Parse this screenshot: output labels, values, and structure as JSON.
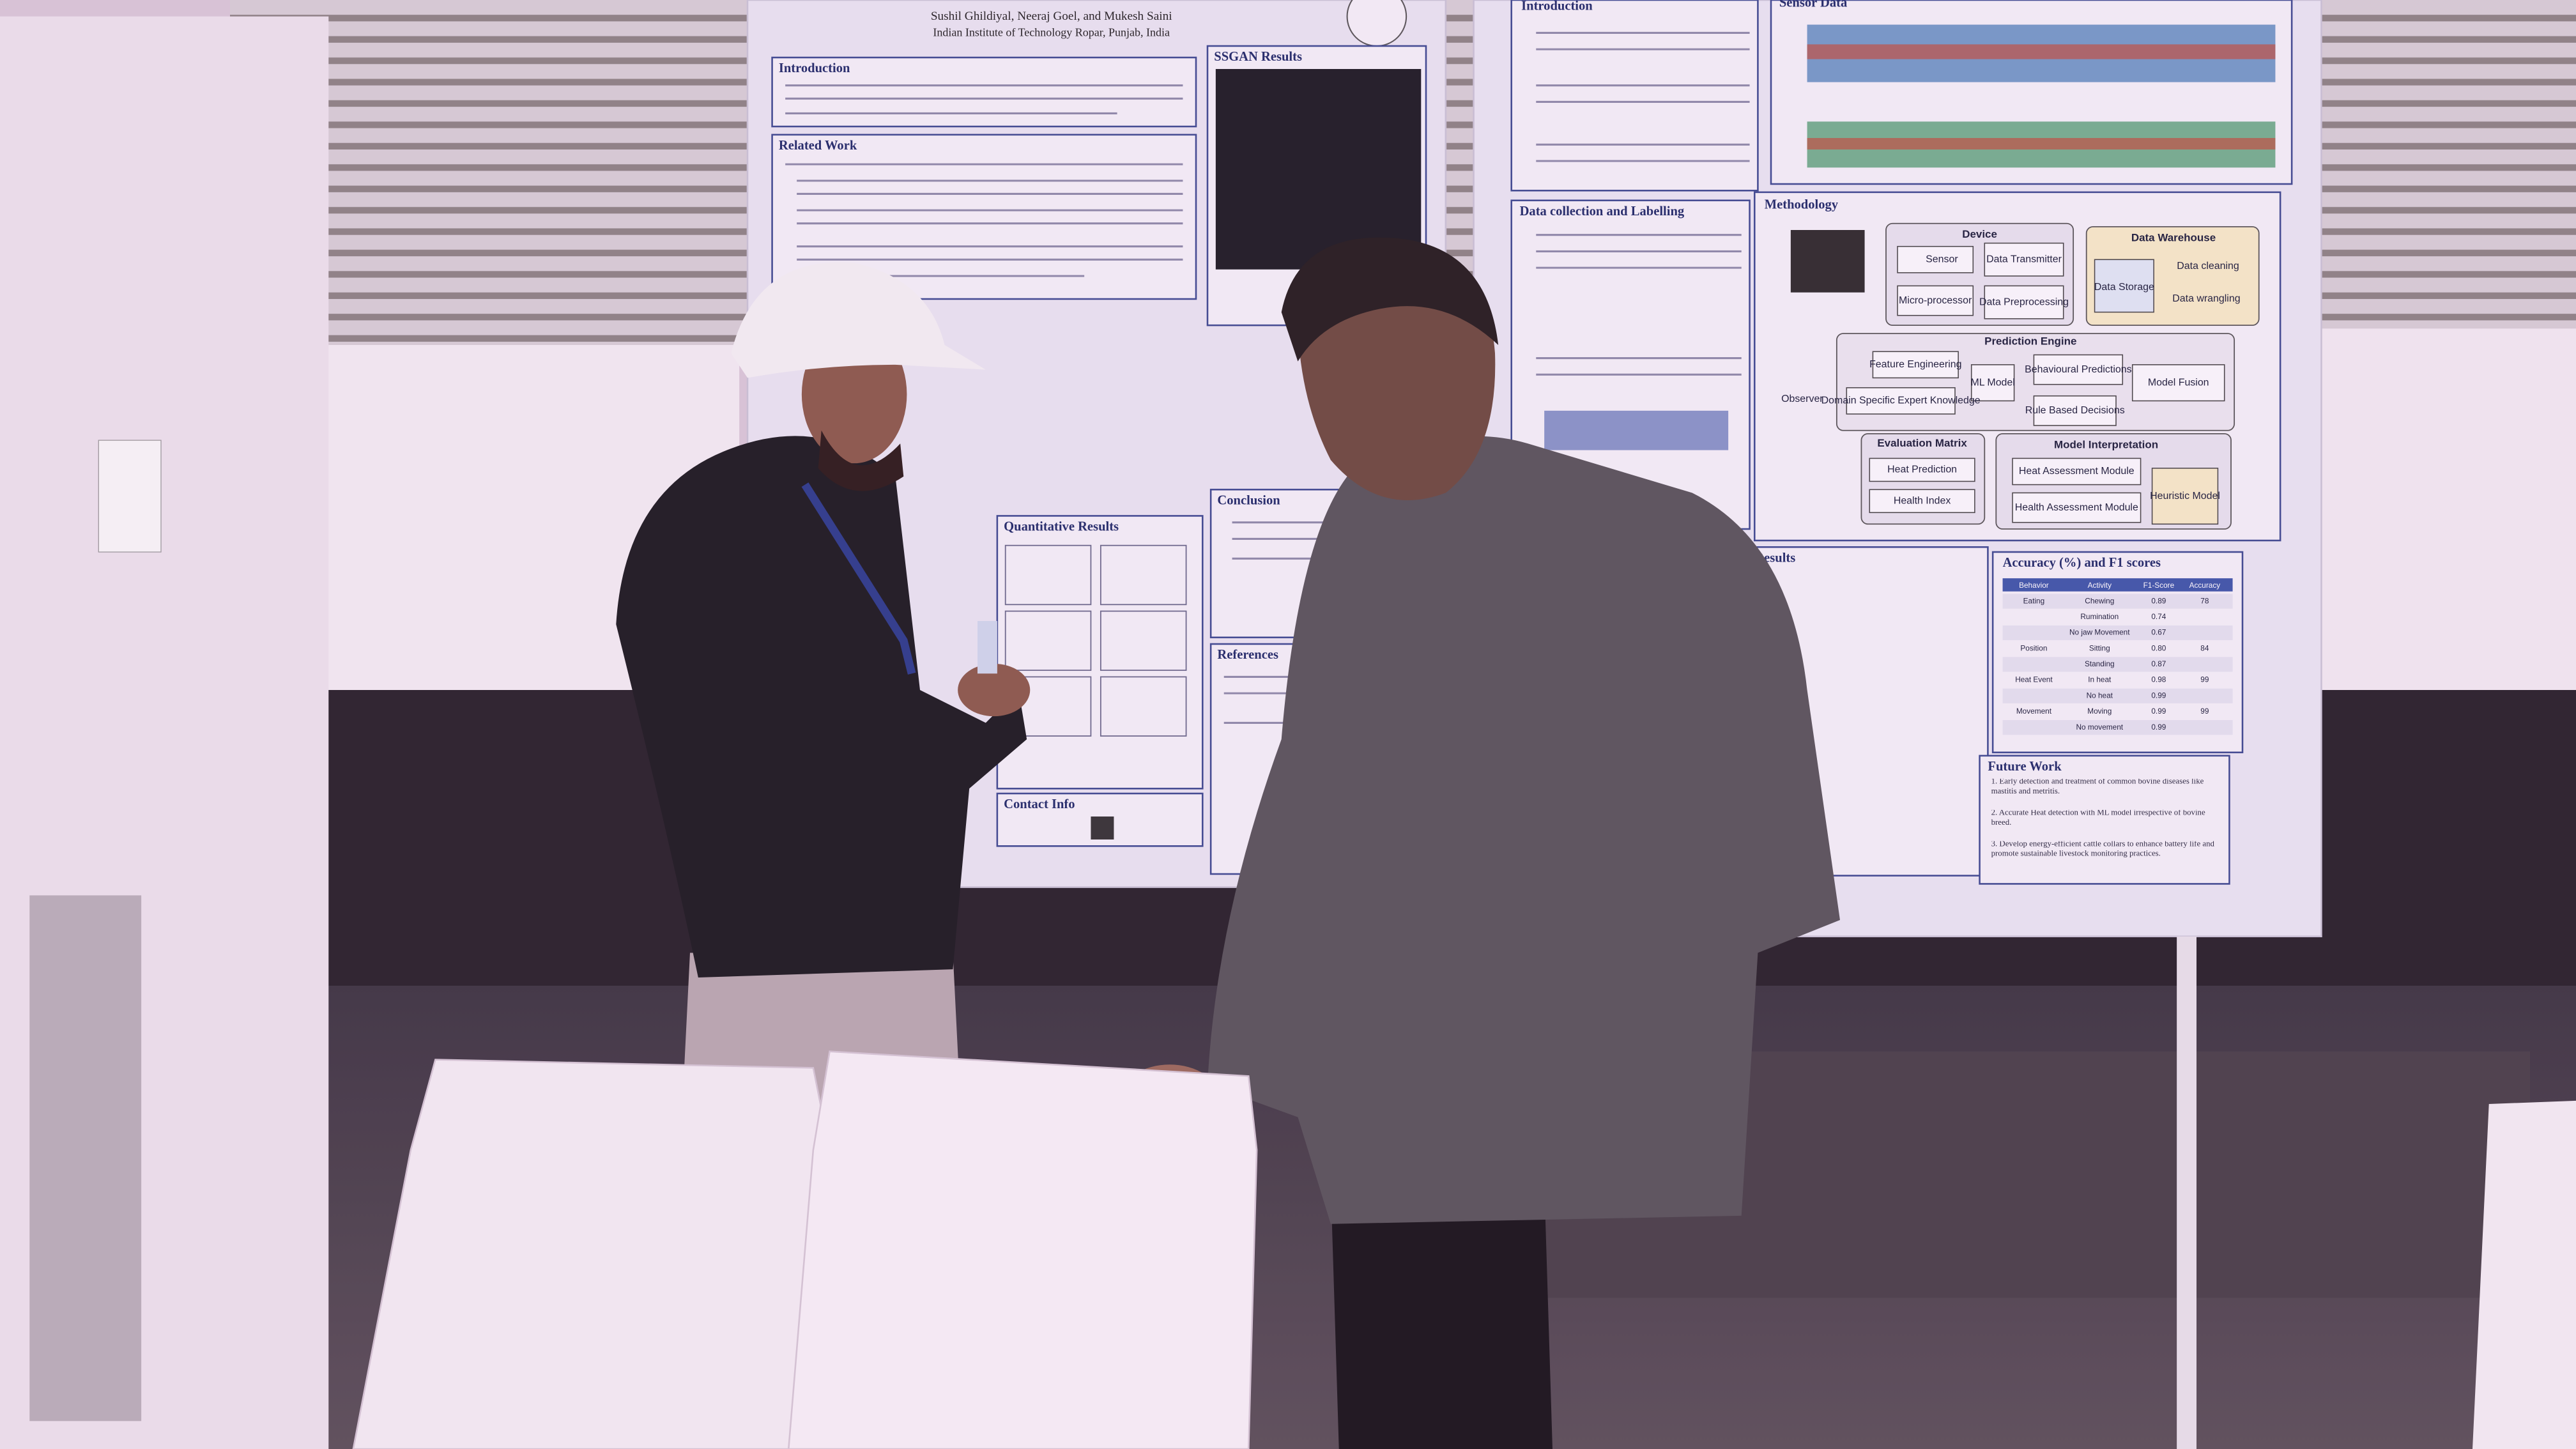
{
  "left_poster": {
    "authors": "Sushil Ghildiyal, Neeraj Goel, and Mukesh Saini",
    "affiliation": "Indian Institute of Technology Ropar, Punjab, India",
    "sections": {
      "introduction": "Introduction",
      "related_work": "Related Work",
      "ssgan_results": "SSGAN Results",
      "quantitative_results": "Quantitative Results",
      "conclusion": "Conclusion",
      "references": "References",
      "contact_info": "Contact Info"
    }
  },
  "right_poster": {
    "sections": {
      "introduction": "Introduction",
      "sensor_data": "Sensor Data",
      "data_collection": "Data collection and Labelling",
      "methodology": "Methodology",
      "results": "Results",
      "accuracy": "Accuracy (%) and F1 scores",
      "future_work": "Future Work"
    },
    "methodology": {
      "device": "Device",
      "sensor": "Sensor",
      "data_transmitter": "Data Transmitter",
      "micro_processor": "Micro-processor",
      "data_preprocessing": "Data Preprocessing",
      "data_warehouse": "Data Warehouse",
      "data_cleaning": "Data cleaning",
      "data_wrangling": "Data wrangling",
      "data_storage": "Data Storage",
      "prediction_engine": "Prediction Engine",
      "feature_engineering": "Feature Engineering",
      "ml_model": "ML Model",
      "behavioural_predictions": "Behavioural Predictions",
      "model_fusion": "Model Fusion",
      "domain_knowledge": "Domain Specific Expert Knowledge",
      "rule_based": "Rule Based Decisions",
      "observer": "Observer",
      "evaluation_matrix": "Evaluation Matrix",
      "heat_prediction": "Heat Prediction",
      "health_index": "Health Index",
      "model_interpretation": "Model Interpretation",
      "heat_assessment": "Heat Assessment Module",
      "health_assessment": "Health Assessment Module",
      "heuristic_model": "Heuristic Model"
    },
    "accuracy_table": {
      "header": [
        "Behavior",
        "Activity",
        "F1-Score",
        "Accuracy"
      ],
      "rows": [
        {
          "behavior": "Eating",
          "activity": "Chewing",
          "f1": "0.89",
          "accuracy": "78"
        },
        {
          "activity": "Rumination",
          "f1": "0.74"
        },
        {
          "activity": "No jaw Movement",
          "f1": "0.67"
        },
        {
          "behavior": "Position",
          "activity": "Sitting",
          "f1": "0.80",
          "accuracy": "84"
        },
        {
          "activity": "Standing",
          "f1": "0.87"
        },
        {
          "behavior": "Heat Event",
          "activity": "In heat",
          "f1": "0.98",
          "accuracy": "99"
        },
        {
          "activity": "No heat",
          "f1": "0.99"
        },
        {
          "behavior": "Movement",
          "activity": "Moving",
          "f1": "0.99",
          "accuracy": "99"
        },
        {
          "activity": "No movement",
          "f1": "0.99"
        }
      ]
    },
    "future_work": [
      "1. Early detection and treatment of common bovine diseases like mastitis and metritis.",
      "2. Accurate Heat detection with ML model irrespective of bovine breed.",
      "3. Develop energy-efficient cattle collars to enhance battery life and promote sustainable livestock monitoring practices."
    ]
  }
}
